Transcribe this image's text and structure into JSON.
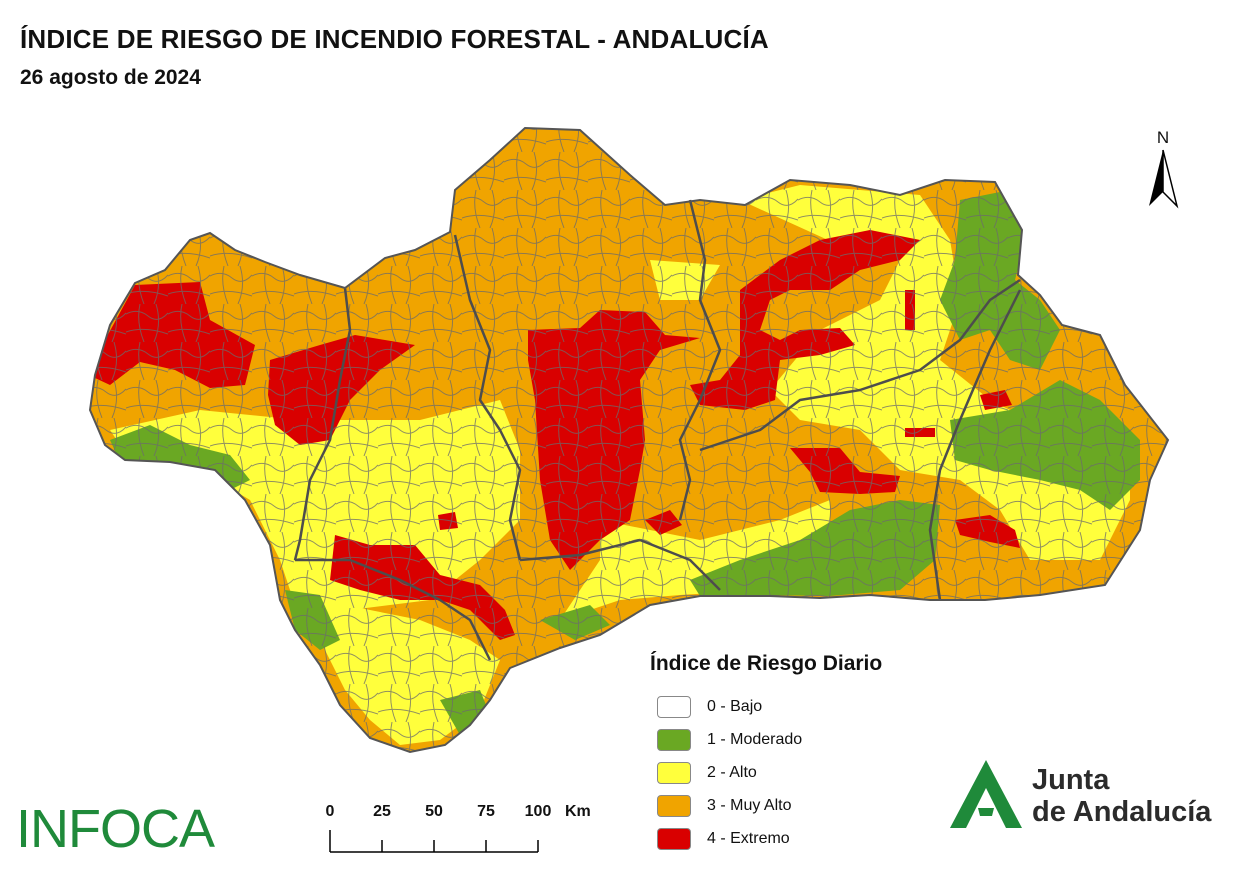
{
  "header": {
    "title": "ÍNDICE DE RIESGO DE INCENDIO FORESTAL - ANDALUCÍA",
    "date": "26 agosto de 2024"
  },
  "north_arrow": {
    "label": "N"
  },
  "legend": {
    "title": "Índice de Riesgo Diario",
    "items": [
      {
        "label": "0 - Bajo",
        "color": "#ffffff"
      },
      {
        "label": "1 - Moderado",
        "color": "#6aa823"
      },
      {
        "label": "2 - Alto",
        "color": "#ffff3c"
      },
      {
        "label": "3 - Muy Alto",
        "color": "#f0a400"
      },
      {
        "label": "4 - Extremo",
        "color": "#d90000"
      }
    ]
  },
  "scale": {
    "ticks": [
      "0",
      "25",
      "50",
      "75",
      "100"
    ],
    "unit": "Km"
  },
  "branding": {
    "infoca": "INFOCA",
    "junta_line1": "Junta",
    "junta_line2": "de Andalucía"
  },
  "colors": {
    "moderado": "#6aa823",
    "alto": "#ffff3c",
    "muy_alto": "#f0a400",
    "extremo": "#d90000",
    "borders": "#6b6b6b",
    "brand_green": "#1f8a3a"
  }
}
